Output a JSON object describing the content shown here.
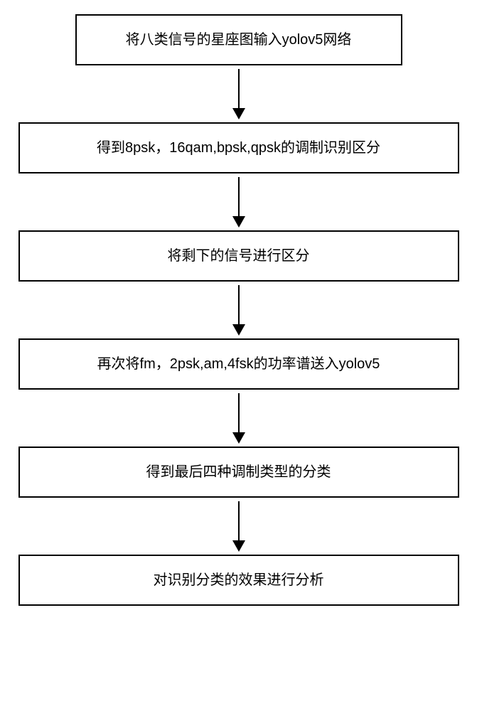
{
  "flowchart": {
    "type": "flowchart",
    "direction": "vertical",
    "background_color": "#ffffff",
    "box_border_color": "#000000",
    "box_border_width": 2,
    "box_fill_color": "#ffffff",
    "text_color": "#000000",
    "font_size": 20,
    "font_family": "Microsoft YaHei",
    "arrow_color": "#000000",
    "arrow_line_width": 2,
    "arrow_head_width": 18,
    "arrow_head_height": 16,
    "arrow_length": 55,
    "box_narrow_width": 460,
    "box_wide_width": 620,
    "box_min_height": 70,
    "nodes": [
      {
        "id": "step1",
        "text": "将八类信号的星座图输入yolov5网络",
        "width_variant": "narrow"
      },
      {
        "id": "step2",
        "text": "得到8psk，16qam,bpsk,qpsk的调制识别区分",
        "width_variant": "wide"
      },
      {
        "id": "step3",
        "text": "将剩下的信号进行区分",
        "width_variant": "wide"
      },
      {
        "id": "step4",
        "text": "再次将fm，2psk,am,4fsk的功率谱送入yolov5",
        "width_variant": "wide"
      },
      {
        "id": "step5",
        "text": "得到最后四种调制类型的分类",
        "width_variant": "wide"
      },
      {
        "id": "step6",
        "text": "对识别分类的效果进行分析",
        "width_variant": "wide"
      }
    ],
    "edges": [
      {
        "from": "step1",
        "to": "step2"
      },
      {
        "from": "step2",
        "to": "step3"
      },
      {
        "from": "step3",
        "to": "step4"
      },
      {
        "from": "step4",
        "to": "step5"
      },
      {
        "from": "step5",
        "to": "step6"
      }
    ]
  }
}
